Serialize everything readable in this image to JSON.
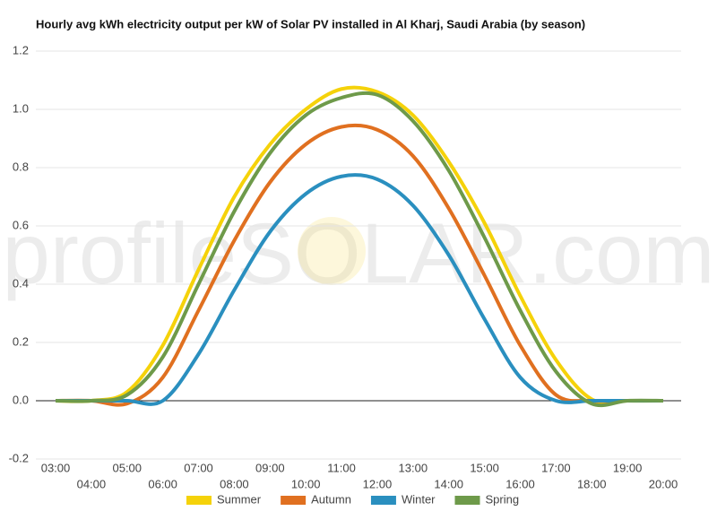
{
  "chart_data": {
    "type": "line",
    "title": "Hourly avg kWh electricity output per kW of Solar PV installed in Al Kharj, Saudi Arabia (by season)",
    "watermark": "profileSOLAR.com",
    "categories": [
      "03:00",
      "04:00",
      "05:00",
      "06:00",
      "07:00",
      "08:00",
      "09:00",
      "10:00",
      "11:00",
      "12:00",
      "13:00",
      "14:00",
      "15:00",
      "16:00",
      "17:00",
      "18:00",
      "19:00",
      "20:00"
    ],
    "series": [
      {
        "name": "Summer",
        "color": "#f5d20a",
        "values": [
          0,
          0,
          0.03,
          0.19,
          0.45,
          0.7,
          0.88,
          1.0,
          1.07,
          1.06,
          0.98,
          0.82,
          0.61,
          0.36,
          0.14,
          0.005,
          0,
          0
        ]
      },
      {
        "name": "Autumn",
        "color": "#e07020",
        "values": [
          0,
          0,
          -0.01,
          0.08,
          0.31,
          0.55,
          0.75,
          0.88,
          0.94,
          0.93,
          0.84,
          0.66,
          0.43,
          0.19,
          0.02,
          0,
          0,
          0
        ]
      },
      {
        "name": "Winter",
        "color": "#2a8fbf",
        "values": [
          0,
          0,
          0,
          0,
          0.16,
          0.38,
          0.58,
          0.71,
          0.77,
          0.76,
          0.67,
          0.5,
          0.28,
          0.08,
          0,
          0,
          0,
          0
        ]
      },
      {
        "name": "Spring",
        "color": "#6e9a4a",
        "values": [
          0,
          0,
          0.02,
          0.15,
          0.4,
          0.65,
          0.85,
          0.98,
          1.04,
          1.05,
          0.96,
          0.79,
          0.56,
          0.31,
          0.1,
          -0.01,
          0,
          0
        ]
      }
    ],
    "ylim": [
      -0.2,
      1.2
    ],
    "yticks": [
      -0.2,
      {
        "value": 0,
        "label": "0.0"
      },
      0.2,
      0.4,
      0.6,
      0.8,
      {
        "value": 1,
        "label": "1.0"
      },
      1.2
    ],
    "grid": true,
    "legend": "bottom"
  }
}
